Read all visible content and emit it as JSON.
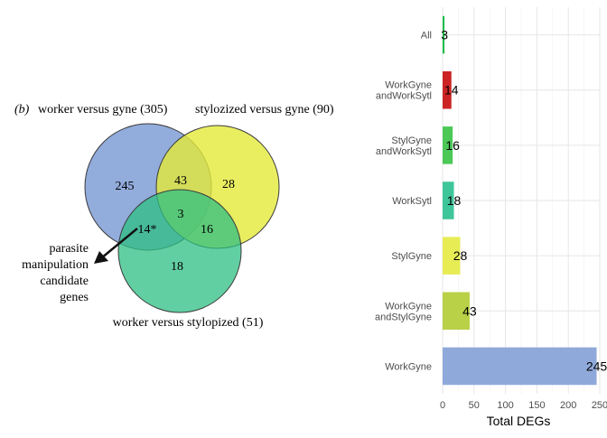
{
  "venn": {
    "panel_label": "(b)",
    "title_left": "worker versus gyne (305)",
    "title_right": "stylozized versus gyne (90)",
    "title_bottom": "worker versus stylopized (51)",
    "regions": {
      "gyne_only": "245",
      "gyne_styl": "43",
      "styl_only": "28",
      "center": "3",
      "worker_gyne": "14*",
      "worker_styl": "16",
      "worker_only": "18"
    },
    "annotation": [
      "parasite",
      "manipulation",
      "candidate",
      "genes"
    ],
    "colors": {
      "blue": "#7f9ed6",
      "yellow": "#e3ea3a",
      "green": "#2ebf83"
    }
  },
  "chart_data": {
    "type": "bar",
    "orientation": "horizontal",
    "categories": [
      "WorkGyne",
      "WorkGyne\nandStylGyne",
      "StylGyne",
      "WorkSytl",
      "StylGyne\nandWorkSytl",
      "WorkGyne\nandWorkSytl",
      "All"
    ],
    "values": [
      245,
      43,
      28,
      18,
      16,
      14,
      3
    ],
    "colors": [
      "#8fa9da",
      "#b8d146",
      "#e7ec55",
      "#3fc59a",
      "#4cc857",
      "#cc2424",
      "#1fbd4e"
    ],
    "xlabel": "Total DEGs",
    "ylabel": "",
    "xlim": [
      0,
      250
    ],
    "xticks": [
      0,
      50,
      100,
      150,
      200,
      250
    ],
    "grid": true
  }
}
